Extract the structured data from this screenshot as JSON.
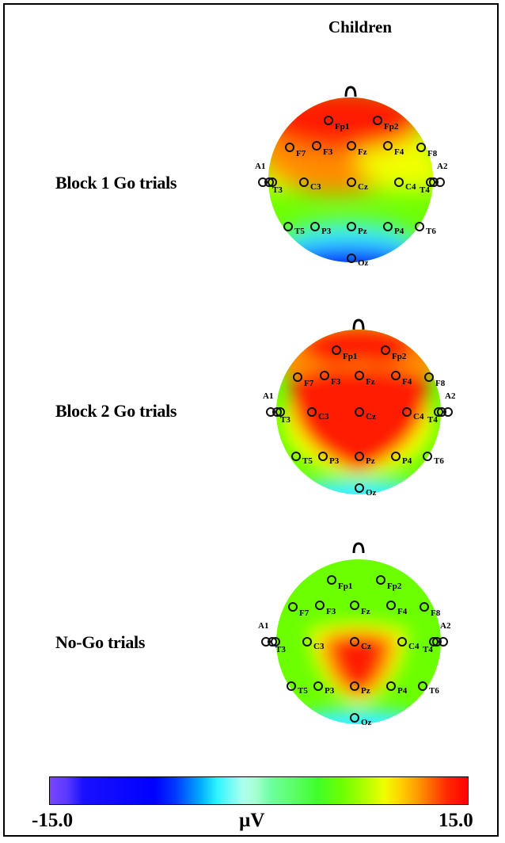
{
  "title": "Children",
  "rows": [
    {
      "label": "Block 1 Go trials"
    },
    {
      "label": "Block 2 Go trials"
    },
    {
      "label": "No-Go trials"
    }
  ],
  "electrodes": [
    "Fp1",
    "Fp2",
    "F7",
    "F3",
    "Fz",
    "F4",
    "F8",
    "A1",
    "T3",
    "C3",
    "Cz",
    "C4",
    "T4",
    "A2",
    "T5",
    "P3",
    "Pz",
    "P4",
    "T6",
    "Oz"
  ],
  "colorbar": {
    "min_label": "-15.0",
    "unit_label": "µV",
    "max_label": "15.0",
    "min": -15.0,
    "max": 15.0
  },
  "colors": {
    "red": "#ff1a00",
    "orange": "#ff8c00",
    "yellow": "#f5ff00",
    "green": "#66ff00",
    "cyan": "#3cf2ff",
    "blue": "#0010ff"
  }
}
